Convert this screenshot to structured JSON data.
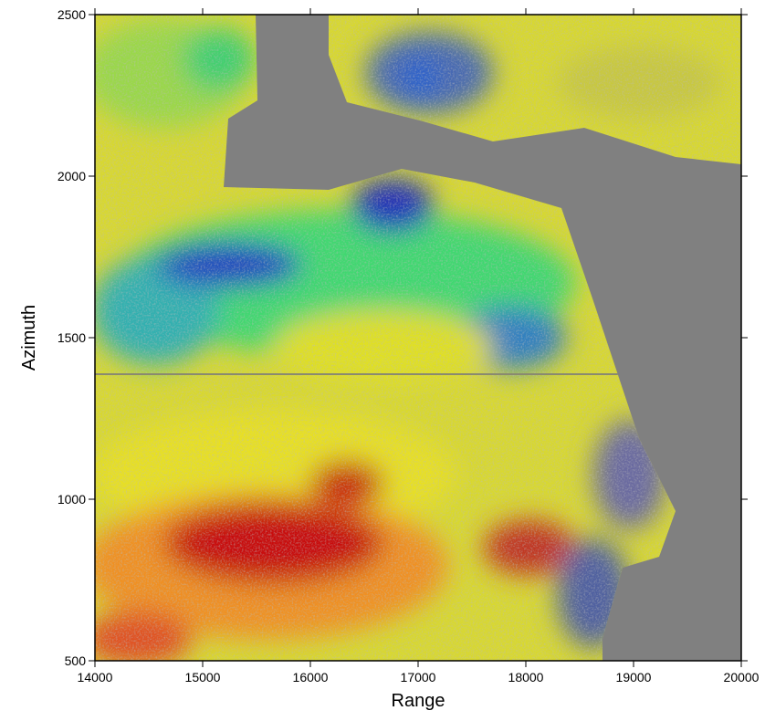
{
  "chart_data": {
    "type": "image",
    "xlabel": "Range",
    "ylabel": "Azimuth",
    "xlim": [
      14000,
      20000
    ],
    "ylim": [
      500,
      2500
    ],
    "xticks": [
      14000,
      15000,
      16000,
      17000,
      18000,
      19000,
      20000
    ],
    "yticks": [
      500,
      1000,
      1500,
      2000,
      2500
    ]
  }
}
